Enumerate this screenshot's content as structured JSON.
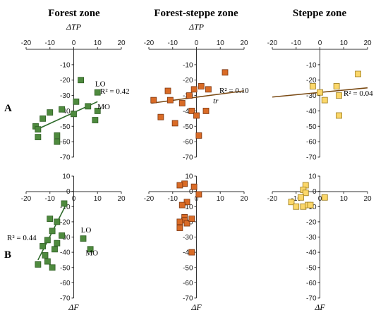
{
  "columns": [
    "Forest zone",
    "Forest-steppe zone",
    "Steppe zone"
  ],
  "rows": [
    "A",
    "B"
  ],
  "colors": {
    "forest": "#4e8a3e",
    "forest_stroke": "#2f5e24",
    "forest_steppe": "#d96b26",
    "forest_steppe_stroke": "#7a3510",
    "steppe": "#fbd76a",
    "steppe_stroke": "#9c7a1a",
    "trend": "#7a4a14",
    "trend_forest": "#2d6a2a"
  },
  "chart_data": [
    {
      "type": "scatter",
      "id": "A-forest",
      "panel": "A",
      "zone": "Forest zone",
      "xlabel": "ΔTP",
      "ylabel": "",
      "xlim": [
        -20,
        20
      ],
      "ylim": [
        -70,
        0
      ],
      "xticks": [
        -20,
        -10,
        0,
        10,
        20
      ],
      "yticks": [
        -10,
        -20,
        -30,
        -40,
        -50,
        -60,
        -70
      ],
      "points": [
        [
          -10,
          -41
        ],
        [
          -13,
          -45
        ],
        [
          -16,
          -50
        ],
        [
          -15,
          -52
        ],
        [
          -15,
          -57
        ],
        [
          -7,
          -56
        ],
        [
          -7,
          -60
        ],
        [
          -5,
          -39
        ],
        [
          0,
          -42
        ],
        [
          1,
          -34
        ],
        [
          3,
          -20
        ],
        [
          6,
          -37
        ],
        [
          10,
          -28
        ],
        [
          10,
          -40
        ],
        [
          9,
          -46
        ]
      ],
      "trendline": {
        "x": [
          -14,
          10
        ],
        "y": [
          -51,
          -34
        ]
      },
      "r2_label": "R² = 0.42",
      "annotations": [
        {
          "text": "LO",
          "x": 9,
          "y": -24
        },
        {
          "text": "MO",
          "x": 10,
          "y": -39
        }
      ]
    },
    {
      "type": "scatter",
      "id": "A-forest-steppe",
      "panel": "A",
      "zone": "Forest-steppe zone",
      "xlabel": "ΔTP",
      "ylabel": "",
      "xlim": [
        -20,
        20
      ],
      "ylim": [
        -70,
        0
      ],
      "xticks": [
        -20,
        -10,
        0,
        10,
        20
      ],
      "yticks": [
        -10,
        -20,
        -30,
        -40,
        -50,
        -60,
        -70
      ],
      "points": [
        [
          -18,
          -33
        ],
        [
          -15,
          -44
        ],
        [
          -12,
          -27
        ],
        [
          -11,
          -33
        ],
        [
          -9,
          -48
        ],
        [
          -6,
          -35
        ],
        [
          -3,
          -30
        ],
        [
          -2,
          -40
        ],
        [
          -1,
          -26
        ],
        [
          0,
          -43
        ],
        [
          2,
          -24
        ],
        [
          1,
          -56
        ],
        [
          5,
          -26
        ],
        [
          4,
          -40
        ],
        [
          12,
          -15
        ]
      ],
      "trendline": {
        "x": [
          -19,
          20
        ],
        "y": [
          -35,
          -27
        ]
      },
      "r2_label": "R² = 0.10",
      "annotations": [
        {
          "text": "tr",
          "x": 7,
          "y": -35,
          "italic": true
        }
      ]
    },
    {
      "type": "scatter",
      "id": "A-steppe",
      "panel": "A",
      "zone": "Steppe zone",
      "xlabel": "",
      "ylabel": "",
      "xlim": [
        -20,
        20
      ],
      "ylim": [
        -70,
        0
      ],
      "xticks": [
        -20,
        -10,
        0,
        10,
        20
      ],
      "yticks": [
        -10,
        -20,
        -30,
        -40,
        -50,
        -60,
        -70
      ],
      "points": [
        [
          -3,
          -24
        ],
        [
          0,
          -28
        ],
        [
          2,
          -33
        ],
        [
          7,
          -24
        ],
        [
          8,
          -30
        ],
        [
          8,
          -43
        ],
        [
          16,
          -16
        ]
      ],
      "trendline": {
        "x": [
          -20,
          20
        ],
        "y": [
          -31,
          -25
        ]
      },
      "r2_label": "R² = 0.04",
      "annotations": []
    },
    {
      "type": "scatter",
      "id": "B-forest",
      "panel": "B",
      "zone": "Forest zone",
      "xlabel": "ΔF",
      "ylabel": "",
      "xlim": [
        -20,
        20
      ],
      "ylim": [
        -70,
        10
      ],
      "xticks": [
        -20,
        -10,
        0,
        10,
        20
      ],
      "yticks": [
        10,
        0,
        -10,
        -20,
        -30,
        -40,
        -50,
        -60,
        -70
      ],
      "points": [
        [
          -4,
          -8
        ],
        [
          -10,
          -18
        ],
        [
          -7,
          -20
        ],
        [
          -9,
          -26
        ],
        [
          -5,
          -29
        ],
        [
          -11,
          -32
        ],
        [
          -13,
          -36
        ],
        [
          -8,
          -38
        ],
        [
          -12,
          -42
        ],
        [
          -15,
          -48
        ],
        [
          -11,
          -46
        ],
        [
          -9,
          -50
        ],
        [
          -7,
          -34
        ],
        [
          4,
          -31
        ],
        [
          7,
          -38
        ]
      ],
      "trendline": {
        "x": [
          -15,
          -3
        ],
        "y": [
          -45,
          -8
        ]
      },
      "r2_label": "R² = 0.44",
      "annotations": [
        {
          "text": "LO",
          "x": 3,
          "y": -27
        },
        {
          "text": "MO",
          "x": 5,
          "y": -42
        }
      ]
    },
    {
      "type": "scatter",
      "id": "B-forest-steppe",
      "panel": "B",
      "zone": "Forest-steppe zone",
      "xlabel": "ΔF",
      "ylabel": "",
      "xlim": [
        -20,
        20
      ],
      "ylim": [
        -70,
        10
      ],
      "xticks": [
        -20,
        -10,
        0,
        10,
        20
      ],
      "yticks": [
        10,
        0,
        -10,
        -20,
        -30,
        -40,
        -50,
        -60,
        -70
      ],
      "points": [
        [
          -5,
          5
        ],
        [
          -7,
          4
        ],
        [
          -1,
          3
        ],
        [
          1,
          -2
        ],
        [
          -4,
          -7
        ],
        [
          -6,
          -9
        ],
        [
          -5,
          -17
        ],
        [
          -5,
          -19
        ],
        [
          -4,
          -21
        ],
        [
          -7,
          -20
        ],
        [
          -7,
          -24
        ],
        [
          -2,
          -18
        ],
        [
          -2,
          -40
        ]
      ],
      "trendline": null,
      "r2_label": "",
      "annotations": []
    },
    {
      "type": "scatter",
      "id": "B-steppe",
      "panel": "B",
      "zone": "Steppe zone",
      "xlabel": "ΔF",
      "ylabel": "",
      "xlim": [
        -20,
        20
      ],
      "ylim": [
        -70,
        10
      ],
      "xticks": [
        -20,
        -10,
        0,
        10,
        20
      ],
      "yticks": [
        10,
        0,
        -10,
        -20,
        -30,
        -40,
        -50,
        -60,
        -70
      ],
      "points": [
        [
          -6,
          4
        ],
        [
          -7,
          1
        ],
        [
          -6,
          -1
        ],
        [
          -8,
          -4
        ],
        [
          -12,
          -7
        ],
        [
          -10,
          -10
        ],
        [
          -7,
          -10
        ],
        [
          -5,
          -9
        ],
        [
          -4,
          -9
        ],
        [
          2,
          -4
        ]
      ],
      "trendline": null,
      "r2_label": "",
      "annotations": []
    }
  ]
}
